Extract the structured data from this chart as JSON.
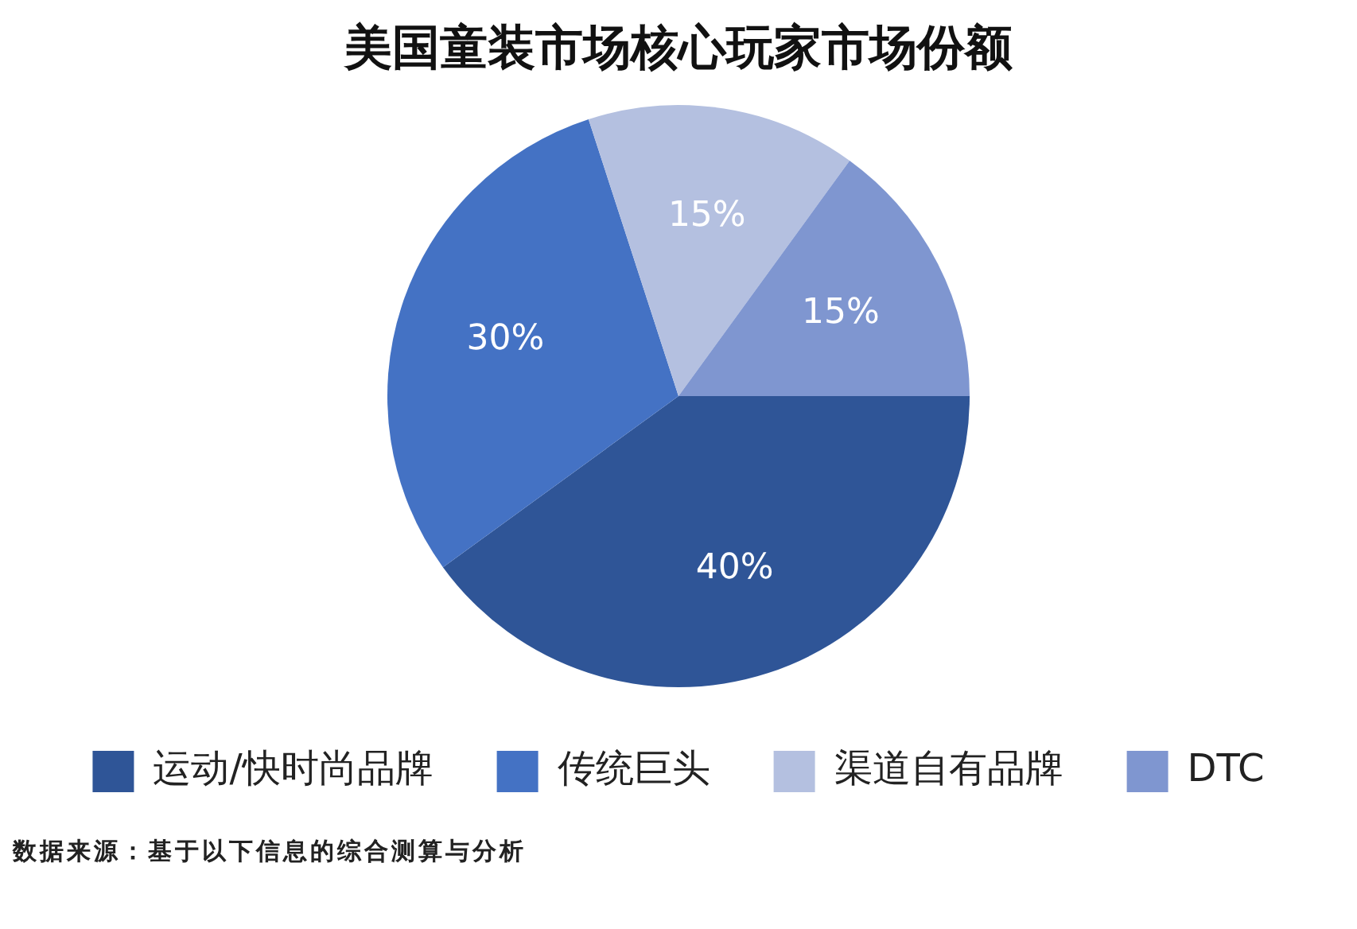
{
  "chart_data": {
    "type": "pie",
    "title": "美国童装市场核心玩家市场份额",
    "categories": [
      "运动/快时尚品牌",
      "传统巨头",
      "渠道自有品牌",
      "DTC"
    ],
    "values": [
      40,
      30,
      15,
      15
    ],
    "colors": [
      "#2f5597",
      "#4472c4",
      "#b4c0e0",
      "#7f96d0"
    ],
    "value_labels": [
      "40%",
      "30%",
      "15%",
      "15%"
    ],
    "legend": "bottom",
    "annotations": [
      "数据来源：基于以下信息的综合测算与分析"
    ]
  }
}
